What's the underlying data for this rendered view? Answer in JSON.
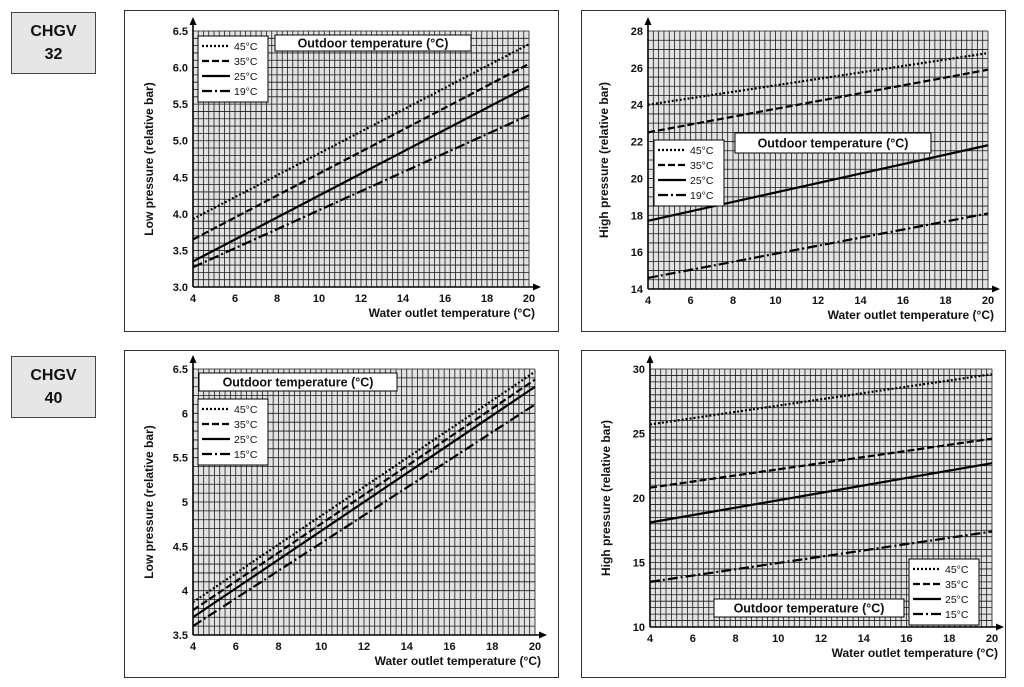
{
  "row_labels": [
    {
      "line1": "CHGV",
      "line2": "32"
    },
    {
      "line1": "CHGV",
      "line2": "40"
    }
  ],
  "chart_data": [
    {
      "type": "line",
      "xlabel": "Water outlet temperature (°C)",
      "ylabel": "Low pressure (relative bar)",
      "legend_title": "Outdoor temperature (°C)",
      "xlim": [
        4,
        20
      ],
      "ylim": [
        3.0,
        6.5
      ],
      "xticks": [
        "4",
        "6",
        "8",
        "10",
        "12",
        "14",
        "16",
        "18",
        "20"
      ],
      "yticks": [
        "3.0",
        "3.5",
        "4.0",
        "4.5",
        "5.0",
        "5.5",
        "6.0",
        "6.5"
      ],
      "grid": true,
      "legend_position": "top-left",
      "series": [
        {
          "name": "45°C",
          "style": "dotted",
          "x": [
            4,
            20
          ],
          "y": [
            3.93,
            6.32
          ]
        },
        {
          "name": "35°C",
          "style": "dashed",
          "x": [
            4,
            20
          ],
          "y": [
            3.65,
            6.05
          ]
        },
        {
          "name": "25°C",
          "style": "solid",
          "x": [
            4,
            20
          ],
          "y": [
            3.35,
            5.75
          ]
        },
        {
          "name": "19°C",
          "style": "dashdot",
          "x": [
            4,
            20
          ],
          "y": [
            3.27,
            5.35
          ]
        }
      ]
    },
    {
      "type": "line",
      "xlabel": "Water outlet temperature (°C)",
      "ylabel": "High pressure (relative bar)",
      "legend_title": "Outdoor temperature (°C)",
      "xlim": [
        4,
        20
      ],
      "ylim": [
        14,
        28
      ],
      "xticks": [
        "4",
        "6",
        "8",
        "10",
        "12",
        "14",
        "16",
        "18",
        "20"
      ],
      "yticks": [
        "14",
        "16",
        "18",
        "20",
        "22",
        "24",
        "26",
        "28"
      ],
      "grid": true,
      "legend_position": "middle-left",
      "series": [
        {
          "name": "45°C",
          "style": "dotted",
          "x": [
            4,
            20
          ],
          "y": [
            24.0,
            26.8
          ]
        },
        {
          "name": "35°C",
          "style": "dashed",
          "x": [
            4,
            20
          ],
          "y": [
            22.5,
            25.9
          ]
        },
        {
          "name": "25°C",
          "style": "solid",
          "x": [
            4,
            20
          ],
          "y": [
            17.7,
            21.8
          ]
        },
        {
          "name": "19°C",
          "style": "dashdot",
          "x": [
            4,
            20
          ],
          "y": [
            14.6,
            18.1
          ]
        }
      ]
    },
    {
      "type": "line",
      "xlabel": "Water outlet temperature (°C)",
      "ylabel": "Low pressure (relative bar)",
      "legend_title": "Outdoor temperature (°C)",
      "xlim": [
        4,
        20
      ],
      "ylim": [
        3.5,
        6.5
      ],
      "xticks": [
        "4",
        "6",
        "8",
        "10",
        "12",
        "14",
        "16",
        "18",
        "20"
      ],
      "yticks": [
        "3.5",
        "4",
        "4.5",
        "5",
        "5.5",
        "6",
        "6.5"
      ],
      "grid": true,
      "legend_position": "top-left",
      "series": [
        {
          "name": "45°C",
          "style": "dotted",
          "x": [
            4,
            20
          ],
          "y": [
            3.87,
            6.47
          ]
        },
        {
          "name": "35°C",
          "style": "dashed",
          "x": [
            4,
            20
          ],
          "y": [
            3.78,
            6.38
          ]
        },
        {
          "name": "25°C",
          "style": "solid",
          "x": [
            4,
            20
          ],
          "y": [
            3.7,
            6.3
          ]
        },
        {
          "name": "15°C",
          "style": "dashdot",
          "x": [
            4,
            20
          ],
          "y": [
            3.6,
            6.1
          ]
        }
      ]
    },
    {
      "type": "line",
      "xlabel": "Water outlet temperature (°C)",
      "ylabel": "High pressure (relative bar)",
      "legend_title": "Outdoor temperature (°C)",
      "xlim": [
        4,
        20
      ],
      "ylim": [
        10,
        30
      ],
      "xticks": [
        "4",
        "6",
        "8",
        "10",
        "12",
        "14",
        "16",
        "18",
        "20"
      ],
      "yticks": [
        "10",
        "15",
        "20",
        "25",
        "30"
      ],
      "grid": true,
      "legend_position": "bottom-right",
      "series": [
        {
          "name": "45°C",
          "style": "dotted",
          "x": [
            4,
            20
          ],
          "y": [
            25.7,
            29.6
          ]
        },
        {
          "name": "35°C",
          "style": "dashed",
          "x": [
            4,
            20
          ],
          "y": [
            20.8,
            24.6
          ]
        },
        {
          "name": "25°C",
          "style": "solid",
          "x": [
            4,
            20
          ],
          "y": [
            18.1,
            22.7
          ]
        },
        {
          "name": "15°C",
          "style": "dashdot",
          "x": [
            4,
            20
          ],
          "y": [
            13.5,
            17.4
          ]
        }
      ]
    }
  ]
}
